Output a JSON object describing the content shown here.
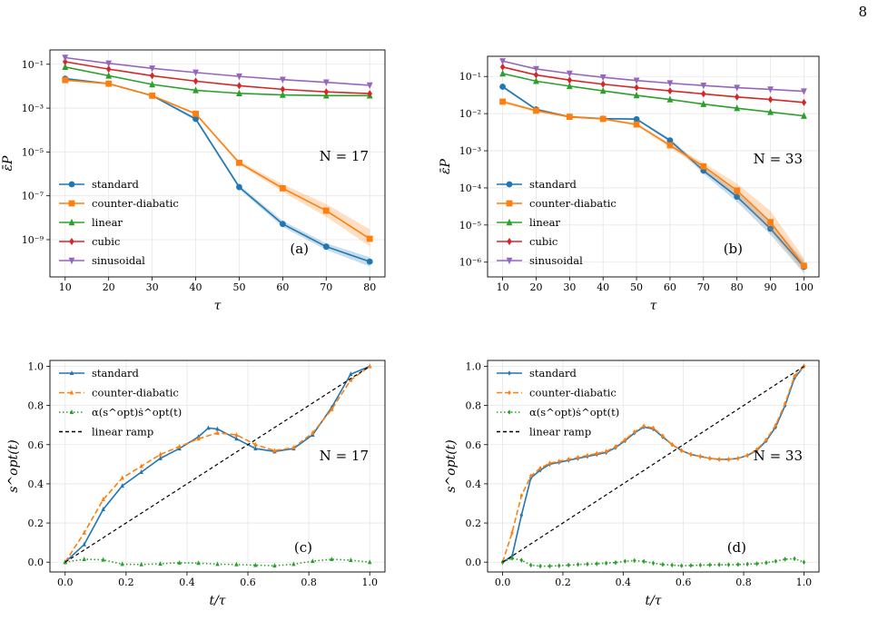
{
  "page_number": "8",
  "chart_data": [
    {
      "id": "a",
      "type": "line",
      "yscale": "log",
      "xlabel": "τ",
      "ylabel": "ε̄P",
      "xlim": [
        6.5,
        83.5
      ],
      "ylim": [
        2e-11,
        0.45
      ],
      "xticks": [
        10,
        20,
        30,
        40,
        50,
        60,
        70,
        80
      ],
      "yticks": [
        1e-09,
        1e-07,
        1e-05,
        0.001,
        0.1
      ],
      "ytick_labels": [
        "10⁻⁹",
        "10⁻⁷",
        "10⁻⁵",
        "10⁻³",
        "10⁻¹"
      ],
      "grid": true,
      "legend_position": "lower-left",
      "annotation": "N = 17",
      "panel_label": "(a)",
      "x": [
        10,
        20,
        30,
        40,
        50,
        60,
        70,
        80
      ],
      "series": [
        {
          "name": "standard",
          "color": "#1f77b4",
          "marker": "circle",
          "values": [
            0.022,
            0.013,
            0.0037,
            0.00032,
            2.5e-07,
            5.2e-09,
            4.8e-10,
            1e-10
          ],
          "band": [
            [
              0.019,
              0.025
            ],
            [
              0.012,
              0.014
            ],
            [
              0.0034,
              0.004
            ],
            [
              0.00026,
              0.00038
            ],
            [
              2e-07,
              3.1e-07
            ],
            [
              3.8e-09,
              7.2e-09
            ],
            [
              3.4e-10,
              6.8e-10
            ],
            [
              6e-11,
              1.6e-10
            ]
          ]
        },
        {
          "name": "counter-diabatic",
          "color": "#ff7f0e",
          "marker": "square",
          "values": [
            0.019,
            0.013,
            0.0037,
            0.00055,
            3.2e-06,
            2.2e-07,
            2.1e-08,
            1.1e-09
          ],
          "band": [
            [
              0.017,
              0.021
            ],
            [
              0.012,
              0.014
            ],
            [
              0.0034,
              0.004
            ],
            [
              0.00048,
              0.00062
            ],
            [
              2.7e-06,
              3.8e-06
            ],
            [
              1.5e-07,
              3.4e-07
            ],
            [
              1.1e-08,
              4.2e-08
            ],
            [
              5e-10,
              3e-09
            ]
          ]
        },
        {
          "name": "linear",
          "color": "#2ca02c",
          "marker": "triangle-up",
          "values": [
            0.075,
            0.03,
            0.012,
            0.0065,
            0.0047,
            0.004,
            0.0037,
            0.0037
          ]
        },
        {
          "name": "cubic",
          "color": "#d62728",
          "marker": "diamond",
          "values": [
            0.13,
            0.06,
            0.03,
            0.017,
            0.0105,
            0.0072,
            0.0055,
            0.0046
          ]
        },
        {
          "name": "sinusoidal",
          "color": "#9467bd",
          "marker": "triangle-down",
          "values": [
            0.2,
            0.11,
            0.065,
            0.042,
            0.028,
            0.02,
            0.015,
            0.011
          ]
        }
      ]
    },
    {
      "id": "b",
      "type": "line",
      "yscale": "log",
      "xlabel": "τ",
      "ylabel": "ε̄P",
      "xlim": [
        5.5,
        104.5
      ],
      "ylim": [
        4e-07,
        0.35
      ],
      "xticks": [
        10,
        20,
        30,
        40,
        50,
        60,
        70,
        80,
        90,
        100
      ],
      "yticks": [
        1e-06,
        1e-05,
        0.0001,
        0.001,
        0.01,
        0.1
      ],
      "ytick_labels": [
        "10⁻⁶",
        "10⁻⁵",
        "10⁻⁴",
        "10⁻³",
        "10⁻²",
        "10⁻¹"
      ],
      "grid": true,
      "legend_position": "lower-left",
      "annotation": "N = 33",
      "panel_label": "(b)",
      "x": [
        10,
        20,
        30,
        40,
        50,
        60,
        70,
        80,
        90,
        100
      ],
      "series": [
        {
          "name": "standard",
          "color": "#1f77b4",
          "marker": "circle",
          "values": [
            0.053,
            0.013,
            0.0082,
            0.0073,
            0.0071,
            0.0019,
            0.00029,
            5.8e-05,
            8e-06,
            7.5e-07
          ],
          "band": [
            [
              0.049,
              0.057
            ],
            [
              0.012,
              0.014
            ],
            [
              0.0077,
              0.0087
            ],
            [
              0.0069,
              0.0077
            ],
            [
              0.0067,
              0.0075
            ],
            [
              0.0017,
              0.0021
            ],
            [
              0.00024,
              0.00035
            ],
            [
              4.2e-05,
              7.8e-05
            ],
            [
              5.5e-06,
              1.2e-05
            ],
            [
              5e-07,
              1.1e-06
            ]
          ]
        },
        {
          "name": "counter-diabatic",
          "color": "#ff7f0e",
          "marker": "square",
          "values": [
            0.021,
            0.012,
            0.0082,
            0.0072,
            0.0051,
            0.0014,
            0.00038,
            8.5e-05,
            1.2e-05,
            8e-07
          ],
          "band": [
            [
              0.019,
              0.023
            ],
            [
              0.011,
              0.013
            ],
            [
              0.0077,
              0.0087
            ],
            [
              0.0068,
              0.0076
            ],
            [
              0.0047,
              0.0055
            ],
            [
              0.0012,
              0.0016
            ],
            [
              0.00031,
              0.00047
            ],
            [
              6e-05,
              0.00013
            ],
            [
              7e-06,
              2.4e-05
            ],
            [
              5.5e-07,
              1.3e-06
            ]
          ]
        },
        {
          "name": "linear",
          "color": "#2ca02c",
          "marker": "triangle-up",
          "values": [
            0.12,
            0.075,
            0.055,
            0.041,
            0.031,
            0.024,
            0.018,
            0.014,
            0.011,
            0.0087
          ]
        },
        {
          "name": "cubic",
          "color": "#d62728",
          "marker": "diamond",
          "values": [
            0.18,
            0.11,
            0.08,
            0.062,
            0.05,
            0.041,
            0.034,
            0.028,
            0.024,
            0.02
          ]
        },
        {
          "name": "sinusoidal",
          "color": "#9467bd",
          "marker": "triangle-down",
          "values": [
            0.26,
            0.16,
            0.12,
            0.095,
            0.078,
            0.066,
            0.057,
            0.05,
            0.045,
            0.04
          ]
        }
      ]
    },
    {
      "id": "c",
      "type": "line",
      "xlabel": "t/τ",
      "ylabel": "s^opt(t)",
      "xlim": [
        -0.05,
        1.05
      ],
      "ylim": [
        -0.05,
        1.03
      ],
      "xticks": [
        0.0,
        0.2,
        0.4,
        0.6,
        0.8,
        1.0
      ],
      "yticks": [
        0.0,
        0.2,
        0.4,
        0.6,
        0.8,
        1.0
      ],
      "grid": true,
      "legend_position": "upper-left",
      "annotation": "N = 17",
      "panel_label": "(c)",
      "marker_x": [
        0,
        0.0625,
        0.125,
        0.1875,
        0.25,
        0.3125,
        0.375,
        0.4375,
        0.5,
        0.5625,
        0.625,
        0.6875,
        0.75,
        0.8125,
        0.875,
        0.9375,
        1.0
      ],
      "series": [
        {
          "name": "standard",
          "color": "#1f77b4",
          "style": "solid",
          "marker": "triangle-up",
          "x": [
            0,
            0.0625,
            0.125,
            0.1875,
            0.25,
            0.3125,
            0.375,
            0.4375,
            0.47,
            0.5,
            0.5625,
            0.625,
            0.6875,
            0.75,
            0.8125,
            0.875,
            0.9375,
            1.0
          ],
          "y": [
            0,
            0.09,
            0.27,
            0.39,
            0.46,
            0.53,
            0.58,
            0.64,
            0.685,
            0.68,
            0.63,
            0.58,
            0.565,
            0.58,
            0.65,
            0.79,
            0.96,
            1.0
          ]
        },
        {
          "name": "counter-diabatic",
          "color": "#ff7f0e",
          "style": "dashed",
          "marker": "triangle-up",
          "x": [
            0,
            0.0625,
            0.125,
            0.1875,
            0.25,
            0.3125,
            0.375,
            0.4375,
            0.5,
            0.5625,
            0.625,
            0.6875,
            0.75,
            0.8125,
            0.875,
            0.9375,
            1.0
          ],
          "y": [
            0,
            0.15,
            0.32,
            0.43,
            0.49,
            0.55,
            0.59,
            0.63,
            0.66,
            0.65,
            0.6,
            0.57,
            0.585,
            0.66,
            0.78,
            0.93,
            1.0
          ]
        },
        {
          "name": "α(s^opt)ṡ^opt(t)",
          "color": "#2ca02c",
          "style": "dotted",
          "marker": "triangle-up",
          "x": [
            0,
            0.0625,
            0.125,
            0.1875,
            0.25,
            0.3125,
            0.375,
            0.4375,
            0.5,
            0.5625,
            0.625,
            0.6875,
            0.75,
            0.8125,
            0.875,
            0.9375,
            1.0
          ],
          "y": [
            0.0,
            0.015,
            0.012,
            -0.01,
            -0.012,
            -0.008,
            -0.003,
            -0.005,
            -0.01,
            -0.012,
            -0.015,
            -0.018,
            -0.01,
            0.005,
            0.015,
            0.01,
            0.0
          ]
        },
        {
          "name": "linear ramp",
          "color": "#000000",
          "style": "dashed",
          "marker": "none",
          "x": [
            0,
            1
          ],
          "y": [
            0,
            1
          ]
        }
      ]
    },
    {
      "id": "d",
      "type": "line",
      "xlabel": "t/τ",
      "ylabel": "s^opt(t)",
      "xlim": [
        -0.05,
        1.05
      ],
      "ylim": [
        -0.05,
        1.03
      ],
      "xticks": [
        0.0,
        0.2,
        0.4,
        0.6,
        0.8,
        1.0
      ],
      "yticks": [
        0.0,
        0.2,
        0.4,
        0.6,
        0.8,
        1.0
      ],
      "grid": true,
      "legend_position": "upper-left",
      "annotation": "N = 33",
      "panel_label": "(d)",
      "series": [
        {
          "name": "standard",
          "color": "#1f77b4",
          "style": "solid",
          "marker": "diamond",
          "x": [
            0,
            0.03125,
            0.0625,
            0.09375,
            0.125,
            0.15625,
            0.1875,
            0.21875,
            0.25,
            0.28125,
            0.3125,
            0.34375,
            0.375,
            0.40625,
            0.4375,
            0.46875,
            0.5,
            0.53125,
            0.5625,
            0.59375,
            0.625,
            0.65625,
            0.6875,
            0.71875,
            0.75,
            0.78125,
            0.8125,
            0.84375,
            0.875,
            0.90625,
            0.9375,
            0.96875,
            1.0
          ],
          "y": [
            0,
            0.03,
            0.24,
            0.43,
            0.47,
            0.5,
            0.51,
            0.52,
            0.53,
            0.54,
            0.55,
            0.56,
            0.585,
            0.62,
            0.66,
            0.69,
            0.68,
            0.64,
            0.6,
            0.57,
            0.55,
            0.54,
            0.53,
            0.525,
            0.525,
            0.53,
            0.545,
            0.57,
            0.62,
            0.69,
            0.8,
            0.94,
            1.0
          ]
        },
        {
          "name": "counter-diabatic",
          "color": "#ff7f0e",
          "style": "dashed",
          "marker": "diamond",
          "x": [
            0,
            0.03125,
            0.0625,
            0.09375,
            0.125,
            0.15625,
            0.1875,
            0.21875,
            0.25,
            0.28125,
            0.3125,
            0.34375,
            0.375,
            0.40625,
            0.4375,
            0.46875,
            0.5,
            0.53125,
            0.5625,
            0.59375,
            0.625,
            0.65625,
            0.6875,
            0.71875,
            0.75,
            0.78125,
            0.8125,
            0.84375,
            0.875,
            0.90625,
            0.9375,
            0.96875,
            1.0
          ],
          "y": [
            0,
            0.15,
            0.34,
            0.44,
            0.48,
            0.505,
            0.515,
            0.525,
            0.535,
            0.545,
            0.555,
            0.565,
            0.59,
            0.625,
            0.665,
            0.695,
            0.685,
            0.645,
            0.6,
            0.57,
            0.55,
            0.54,
            0.53,
            0.525,
            0.525,
            0.53,
            0.545,
            0.575,
            0.625,
            0.7,
            0.81,
            0.95,
            1.0
          ]
        },
        {
          "name": "α(s^opt)ṡ^opt(t)",
          "color": "#2ca02c",
          "style": "dotted",
          "marker": "diamond",
          "x": [
            0,
            0.03125,
            0.0625,
            0.09375,
            0.125,
            0.15625,
            0.1875,
            0.21875,
            0.25,
            0.28125,
            0.3125,
            0.34375,
            0.375,
            0.40625,
            0.4375,
            0.46875,
            0.5,
            0.53125,
            0.5625,
            0.59375,
            0.625,
            0.65625,
            0.6875,
            0.71875,
            0.75,
            0.78125,
            0.8125,
            0.84375,
            0.875,
            0.90625,
            0.9375,
            0.96875,
            1.0
          ],
          "y": [
            0,
            0.02,
            0.01,
            -0.015,
            -0.02,
            -0.02,
            -0.018,
            -0.015,
            -0.012,
            -0.01,
            -0.008,
            -0.005,
            -0.002,
            0.005,
            0.008,
            0.004,
            -0.005,
            -0.012,
            -0.015,
            -0.018,
            -0.017,
            -0.015,
            -0.014,
            -0.013,
            -0.013,
            -0.012,
            -0.01,
            -0.008,
            -0.003,
            0.005,
            0.015,
            0.018,
            0.0
          ]
        },
        {
          "name": "linear ramp",
          "color": "#000000",
          "style": "dashed",
          "marker": "none",
          "x": [
            0,
            1
          ],
          "y": [
            0,
            1
          ]
        }
      ]
    }
  ]
}
